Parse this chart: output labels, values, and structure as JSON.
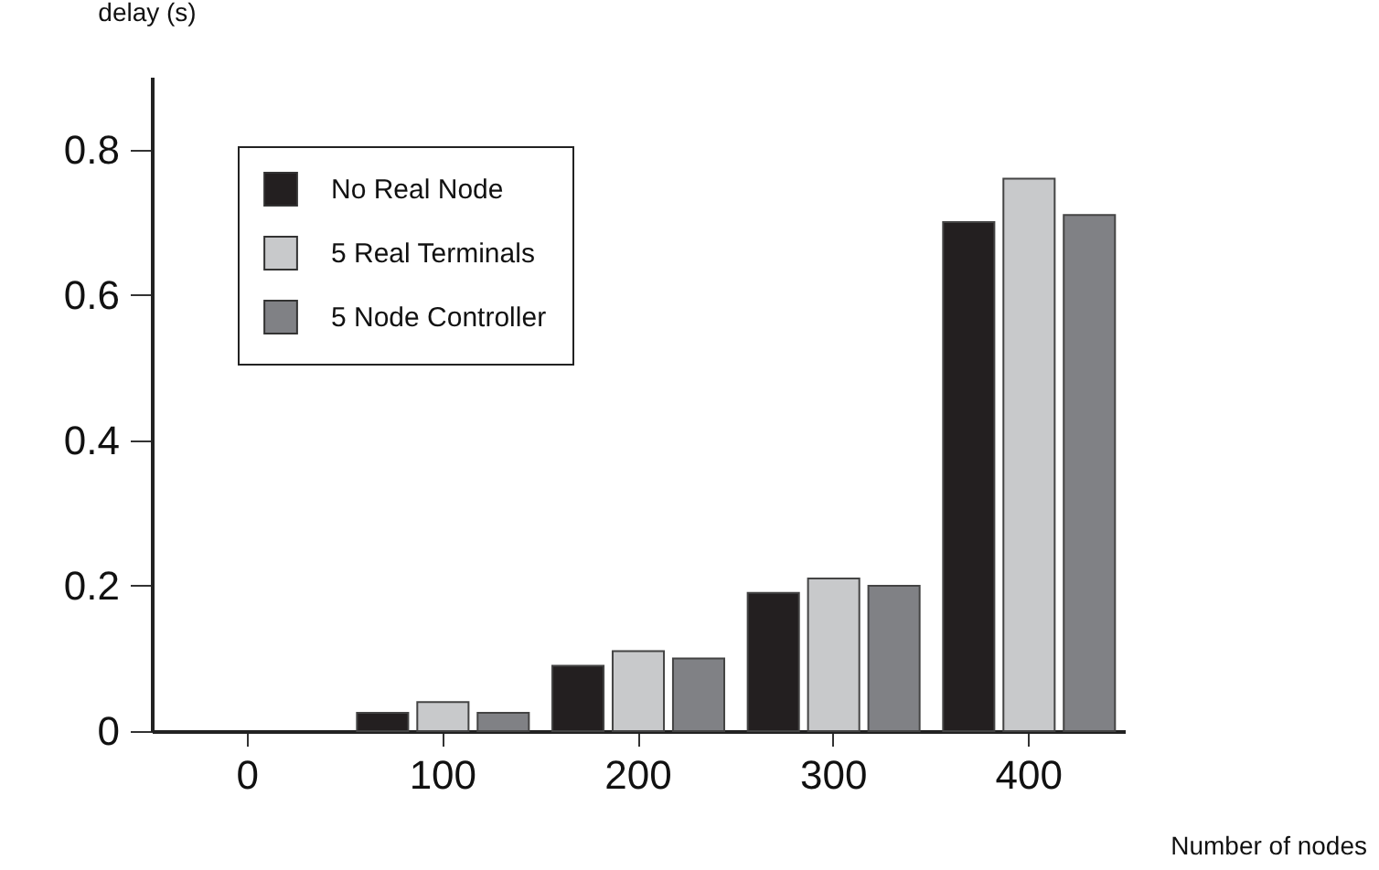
{
  "chart_data": {
    "type": "bar",
    "xlabel": "Number of nodes",
    "ylabel": "delay (s)",
    "categories": [
      "0",
      "100",
      "200",
      "300",
      "400"
    ],
    "series": [
      {
        "name": "No Real Node",
        "color": "#231f20",
        "values": [
          null,
          0.025,
          0.09,
          0.19,
          0.7
        ]
      },
      {
        "name": "5 Real Terminals",
        "color": "#c8c9cb",
        "values": [
          null,
          0.04,
          0.11,
          0.21,
          0.76
        ]
      },
      {
        "name": "5 Node Controller",
        "color": "#808185",
        "values": [
          null,
          0.025,
          0.1,
          0.2,
          0.71
        ]
      }
    ],
    "ylim": [
      0,
      0.9
    ],
    "yticks": [
      0,
      0.2,
      0.4,
      0.6,
      0.8
    ],
    "grid": false,
    "legend": "top left"
  }
}
